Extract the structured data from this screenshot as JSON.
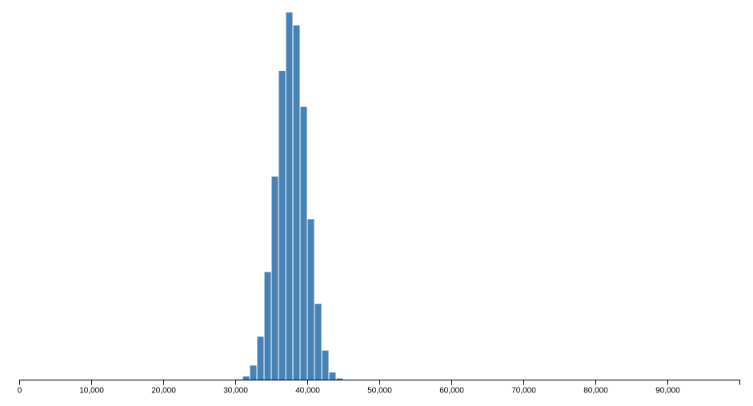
{
  "chart_data": {
    "type": "bar",
    "title": "",
    "xlabel": "",
    "ylabel": "",
    "bar_color": "#4682b4",
    "grid": false,
    "xlim": [
      0,
      100000
    ],
    "bin_width": 1000,
    "bins": [
      {
        "x0": 30000,
        "x1": 31000,
        "count": 1
      },
      {
        "x0": 31000,
        "x1": 32000,
        "count": 4
      },
      {
        "x0": 32000,
        "x1": 33000,
        "count": 15
      },
      {
        "x0": 33000,
        "x1": 34000,
        "count": 44
      },
      {
        "x0": 34000,
        "x1": 35000,
        "count": 109
      },
      {
        "x0": 35000,
        "x1": 36000,
        "count": 205
      },
      {
        "x0": 36000,
        "x1": 37000,
        "count": 311
      },
      {
        "x0": 37000,
        "x1": 38000,
        "count": 370
      },
      {
        "x0": 38000,
        "x1": 39000,
        "count": 357
      },
      {
        "x0": 39000,
        "x1": 40000,
        "count": 275
      },
      {
        "x0": 40000,
        "x1": 41000,
        "count": 162
      },
      {
        "x0": 41000,
        "x1": 42000,
        "count": 77
      },
      {
        "x0": 42000,
        "x1": 43000,
        "count": 30
      },
      {
        "x0": 43000,
        "x1": 44000,
        "count": 8
      },
      {
        "x0": 44000,
        "x1": 45000,
        "count": 2
      },
      {
        "x0": 45000,
        "x1": 46000,
        "count": 0.5
      }
    ],
    "ylim": [
      0,
      370
    ],
    "x_ticks": [
      {
        "value": 0,
        "label": "0"
      },
      {
        "value": 10000,
        "label": "10,000"
      },
      {
        "value": 20000,
        "label": "20,000"
      },
      {
        "value": 30000,
        "label": "30,000"
      },
      {
        "value": 40000,
        "label": "40,000"
      },
      {
        "value": 50000,
        "label": "50,000"
      },
      {
        "value": 60000,
        "label": "60,000"
      },
      {
        "value": 70000,
        "label": "70,000"
      },
      {
        "value": 80000,
        "label": "80,000"
      },
      {
        "value": 90000,
        "label": "90,000"
      }
    ]
  }
}
